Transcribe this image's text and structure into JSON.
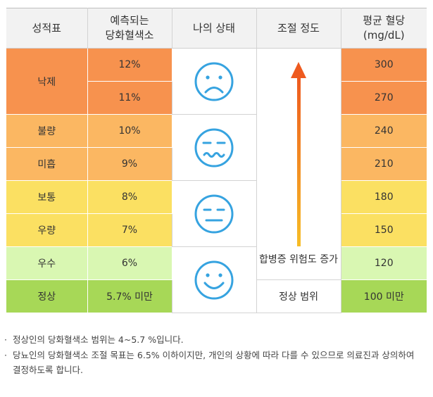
{
  "headers": {
    "grade": "성적표",
    "hba1c": [
      "예측되는",
      "당화혈색소"
    ],
    "status": "나의 상태",
    "control": "조절 정도",
    "glucose": [
      "평균 혈당",
      "(mg/dL)"
    ]
  },
  "grades": {
    "fail": "낙제",
    "poor": "불량",
    "insufficient": "미흡",
    "average": "보통",
    "good": "우량",
    "excellent": "우수",
    "normal": "정상"
  },
  "hba1c_values": [
    "12%",
    "11%",
    "10%",
    "9%",
    "8%",
    "7%",
    "6%",
    "5.7% 미만"
  ],
  "glucose_values": [
    "300",
    "270",
    "240",
    "210",
    "180",
    "150",
    "120",
    "100 미만"
  ],
  "control": {
    "increase_label": "합병증 위험도 증가",
    "normal_label": "정상 범위"
  },
  "faces": [
    "sad-face-icon",
    "wavy-mouth-face-icon",
    "neutral-face-icon",
    "smiling-face-icon"
  ],
  "notes": [
    "정상인의 당화혈색소 범위는 4~5.7 %입니다.",
    "당뇨인의 당화혈색소 조절 목표는 6.5% 이하이지만, 개인의 상황에 따라 다를 수 있으므로 의료진과 상의하여",
    "결정하도록 합니다."
  ],
  "note_bullet": "·",
  "colors": {
    "orange": "#f7924e",
    "light_orange": "#fbb762",
    "yellow": "#fbe062",
    "pale_green": "#d9f7b2",
    "green": "#a7d857",
    "face_blue": "#36a3e0",
    "arrow_top": "#ee5a1f",
    "arrow_bottom": "#f7bd26"
  }
}
